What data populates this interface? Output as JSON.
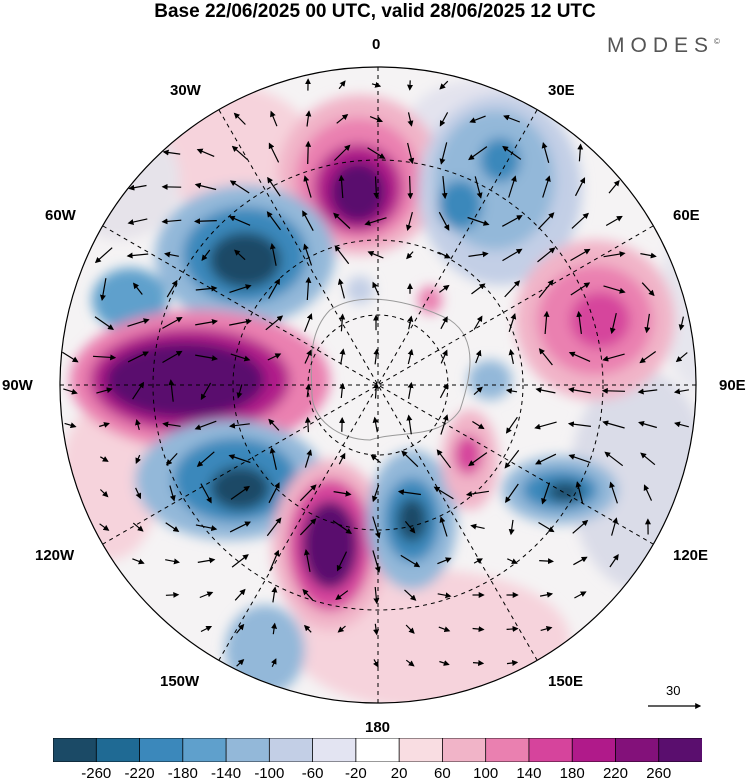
{
  "title": "Base 22/06/2025 00 UTC, valid 28/06/2025 12 UTC",
  "brand": "MODES",
  "brand_mark": "©",
  "longitude_labels": {
    "lon_0": "0",
    "lon_30e": "30E",
    "lon_60e": "60E",
    "lon_90e": "90E",
    "lon_120e": "120E",
    "lon_150e": "150E",
    "lon_180": "180",
    "lon_150w": "150W",
    "lon_120w": "120W",
    "lon_90w": "90W",
    "lon_60w": "60W",
    "lon_30w": "30W"
  },
  "vector_reference": {
    "value": "30"
  },
  "colorbar": {
    "ticks": [
      "-260",
      "-220",
      "-180",
      "-140",
      "-100",
      "-60",
      "-20",
      "20",
      "60",
      "100",
      "140",
      "180",
      "220",
      "260"
    ],
    "colors": [
      "#1b4a66",
      "#1f6a94",
      "#3b88bb",
      "#5fa0cc",
      "#93b8d9",
      "#c3cfe6",
      "#e3e4f2",
      "#ffffff",
      "#f9dde2",
      "#f1b4c8",
      "#ea80b0",
      "#d6449c",
      "#b01a8a",
      "#83117a",
      "#5a0e6e"
    ]
  },
  "colors": {
    "negative_strong": "#1b4a66",
    "negative_mid": "#5fa0cc",
    "negative_weak": "#c3cfe6",
    "positive_weak": "#f9dde2",
    "positive_mid": "#ea80b0",
    "positive_strong": "#83117a",
    "land": "#e2e2e2"
  }
}
